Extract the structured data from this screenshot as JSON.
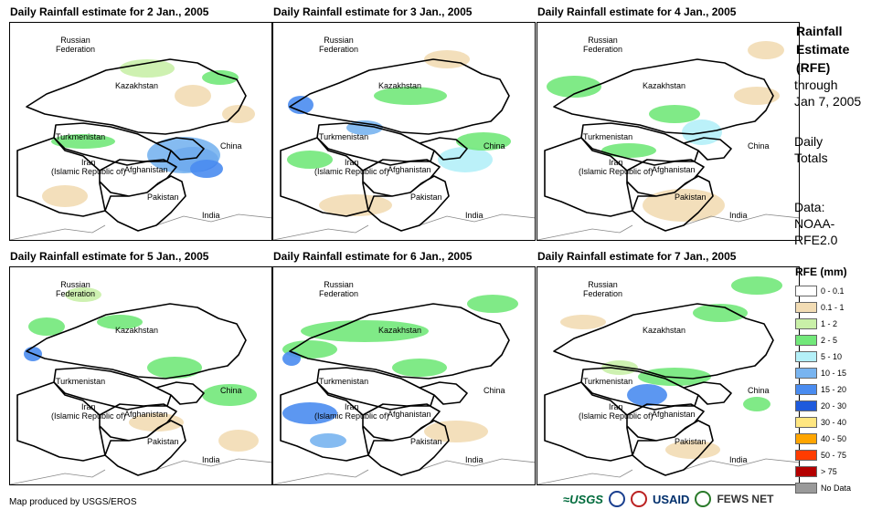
{
  "panels": [
    {
      "title": "Daily Rainfall estimate for 2 Jan., 2005"
    },
    {
      "title": "Daily Rainfall estimate for 3 Jan., 2005"
    },
    {
      "title": "Daily Rainfall estimate for 4 Jan., 2005"
    },
    {
      "title": "Daily Rainfall estimate for 5 Jan., 2005"
    },
    {
      "title": "Daily Rainfall estimate for 6 Jan., 2005"
    },
    {
      "title": "Daily Rainfall estimate for 7 Jan., 2005"
    }
  ],
  "map_labels": {
    "russia": "Russian\nFederation",
    "kazakhstan": "Kazakhstan",
    "turkmenistan": "Turkmenistan",
    "china": "China",
    "iran": "Iran\n(Islamic Republic of)",
    "afghanistan": "Afghanistan",
    "pakistan": "Pakistan",
    "india": "India"
  },
  "sidebar": {
    "title": "Rainfall\nEstimate\n(RFE)",
    "through": "through\nJan 7, 2005",
    "totals": "Daily\nTotals",
    "data": "Data:\nNOAA-\nRFE2.0"
  },
  "legend": {
    "title": "RFE (mm)",
    "items": [
      {
        "label": "0 - 0.1",
        "color": "#ffffff"
      },
      {
        "label": "0.1 - 1",
        "color": "#f2dcb4"
      },
      {
        "label": "1 - 2",
        "color": "#c9f0a8"
      },
      {
        "label": "2 - 5",
        "color": "#72e87a"
      },
      {
        "label": "5 - 10",
        "color": "#b4f0f8"
      },
      {
        "label": "10 - 15",
        "color": "#78b4f0"
      },
      {
        "label": "15 - 20",
        "color": "#4a8cf0"
      },
      {
        "label": "20 - 30",
        "color": "#1e5adc"
      },
      {
        "label": "30 - 40",
        "color": "#ffe680"
      },
      {
        "label": "40 - 50",
        "color": "#ffa500"
      },
      {
        "label": "50 - 75",
        "color": "#ff3c00"
      },
      {
        "label": "> 75",
        "color": "#b40000"
      },
      {
        "label": "No Data",
        "color": "#9a9a9a"
      }
    ]
  },
  "footer": {
    "credit": "Map produced by USGS/EROS"
  },
  "logos": {
    "usgs": "≈USGS",
    "usaid": "USAID",
    "fews": "FEWS NET"
  }
}
